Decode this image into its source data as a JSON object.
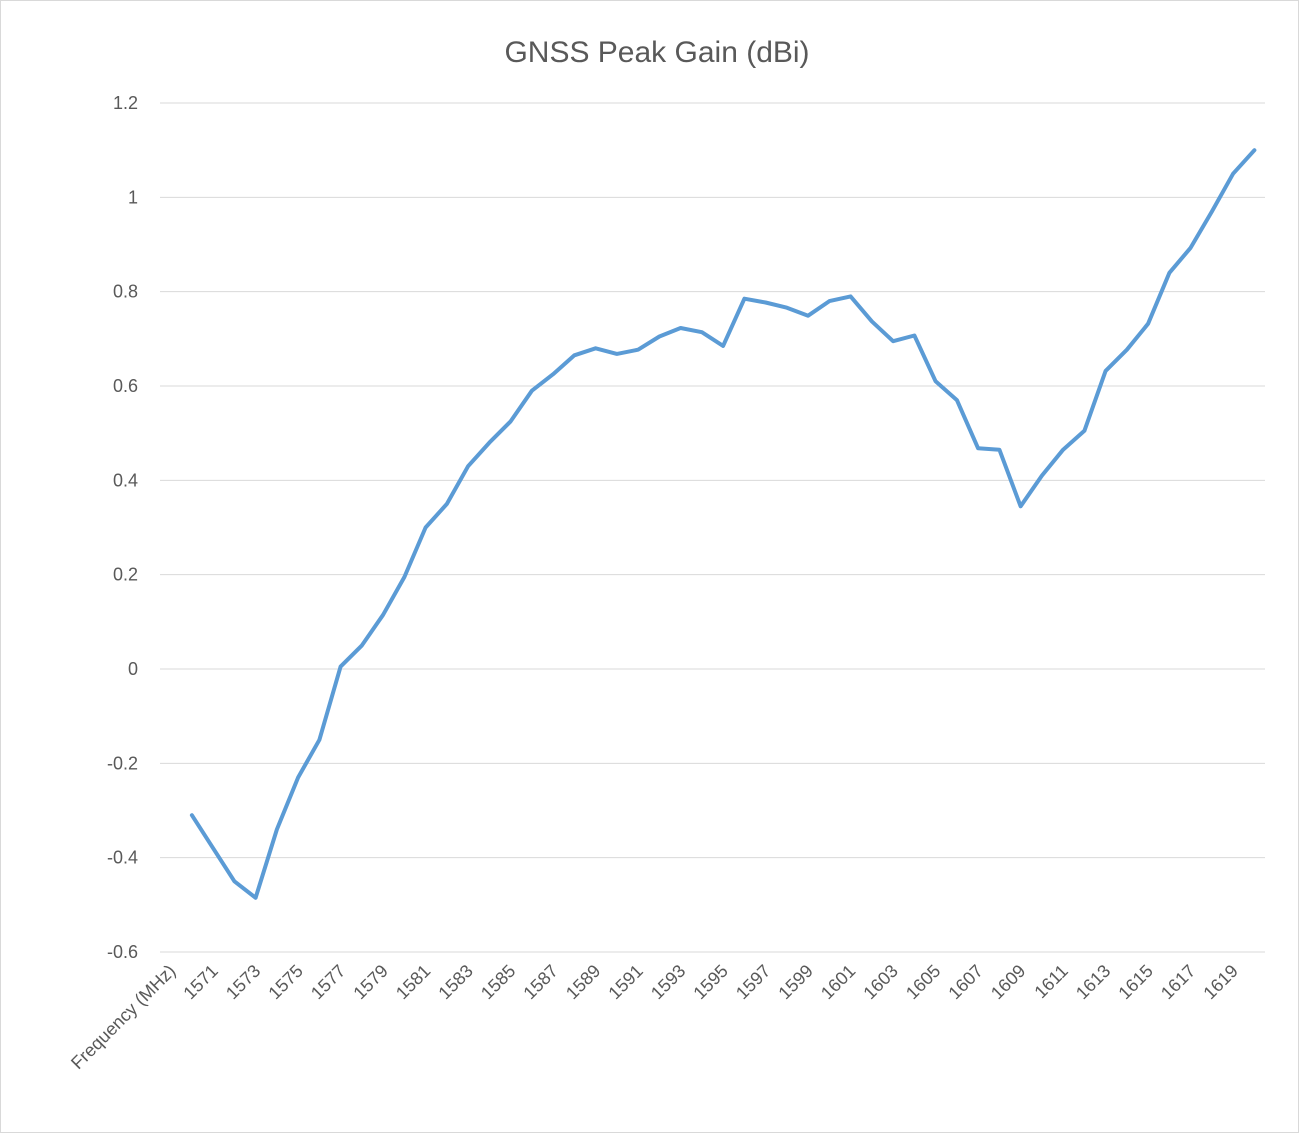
{
  "chart_data": {
    "type": "line",
    "title": "GNSS Peak Gain (dBi)",
    "categories": [
      "Frequency  (MHz)",
      null,
      "1571",
      null,
      "1573",
      null,
      "1575",
      null,
      "1577",
      null,
      "1579",
      null,
      "1581",
      null,
      "1583",
      null,
      "1585",
      null,
      "1587",
      null,
      "1589",
      null,
      "1591",
      null,
      "1593",
      null,
      "1595",
      null,
      "1597",
      null,
      "1599",
      null,
      "1601",
      null,
      "1603",
      null,
      "1605",
      null,
      "1607",
      null,
      "1609",
      null,
      "1611",
      null,
      "1613",
      null,
      "1615",
      null,
      "1617",
      null,
      "1619",
      null
    ],
    "values": [
      null,
      -0.31,
      -0.38,
      -0.45,
      -0.485,
      -0.34,
      -0.23,
      -0.15,
      0.005,
      0.05,
      0.115,
      0.195,
      0.3,
      0.35,
      0.43,
      0.48,
      0.525,
      0.59,
      0.625,
      0.665,
      0.68,
      0.668,
      0.677,
      0.705,
      0.723,
      0.714,
      0.685,
      0.785,
      0.777,
      0.766,
      0.749,
      0.78,
      0.79,
      0.737,
      0.695,
      0.707,
      0.61,
      0.57,
      0.468,
      0.465,
      0.345,
      0.41,
      0.465,
      0.505,
      0.632,
      0.677,
      0.732,
      0.84,
      0.893,
      0.97,
      1.05,
      1.1
    ],
    "color": "#5b9bd5",
    "ylim": [
      -0.6,
      1.2
    ],
    "yticks": [
      -0.6,
      -0.4,
      -0.2,
      0,
      0.2,
      0.4,
      0.6,
      0.8,
      1,
      1.2
    ],
    "grid": true
  }
}
